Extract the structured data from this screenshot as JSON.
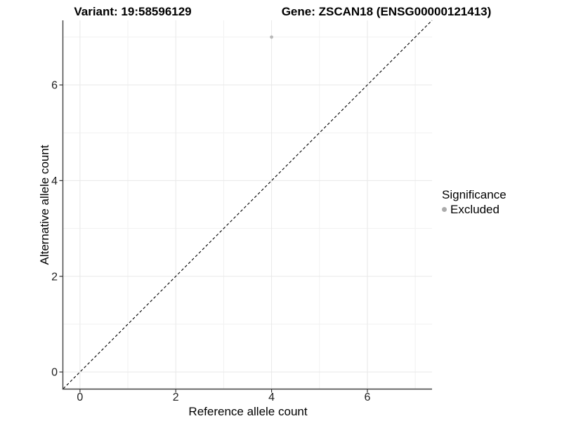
{
  "chart_data": {
    "type": "scatter",
    "title_left": "Variant: 19:58596129",
    "title_right": "Gene: ZSCAN18 (ENSG00000121413)",
    "xlabel": "Reference allele count",
    "ylabel": "Alternative allele count",
    "xlim": [
      -0.35,
      7.35
    ],
    "ylim": [
      -0.35,
      7.35
    ],
    "x_major_ticks": [
      0,
      2,
      4,
      6
    ],
    "x_minor_ticks": [
      1,
      3,
      5,
      7
    ],
    "y_major_ticks": [
      0,
      2,
      4,
      6
    ],
    "y_minor_ticks": [
      1,
      3,
      5,
      7
    ],
    "grid": true,
    "points": [
      {
        "x": 4,
        "y": 7,
        "series": "Excluded"
      }
    ],
    "reference_line": {
      "type": "identity",
      "slope": 1,
      "intercept": 0,
      "style": "dashed"
    },
    "legend": {
      "title": "Significance",
      "position": "right",
      "items": [
        {
          "label": "Excluded",
          "color": "#ababab"
        }
      ]
    },
    "colors": {
      "point_excluded": "#b8b8b8",
      "grid_major": "#e8e8e8",
      "grid_minor": "#f1f1f1",
      "axis_line": "#404040",
      "tick_mark": "#333333",
      "tick_label": "#202020",
      "dashed_line": "#000000",
      "background": "#ffffff"
    }
  }
}
